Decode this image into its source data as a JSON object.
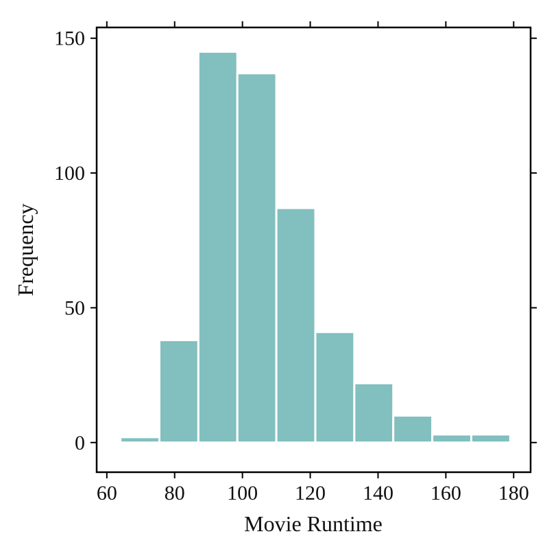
{
  "chart_data": {
    "type": "bar",
    "subtype": "histogram",
    "xlabel": "Movie Runtime",
    "ylabel": "Frequency",
    "xlim": [
      57,
      185
    ],
    "ylim": [
      -11,
      154
    ],
    "xticks": [
      60,
      80,
      100,
      120,
      140,
      160,
      180
    ],
    "yticks": [
      0,
      50,
      100,
      150
    ],
    "bin_edges": [
      64,
      75.5,
      87,
      98.5,
      110,
      121.5,
      133,
      144.5,
      156,
      167.5,
      179
    ],
    "values": [
      2,
      38,
      145,
      137,
      87,
      41,
      22,
      10,
      3,
      3
    ],
    "grid": false,
    "colors": {
      "bar_fill": "#82bfbf",
      "bar_edge": "#ffffff",
      "axis": "#000000"
    }
  }
}
